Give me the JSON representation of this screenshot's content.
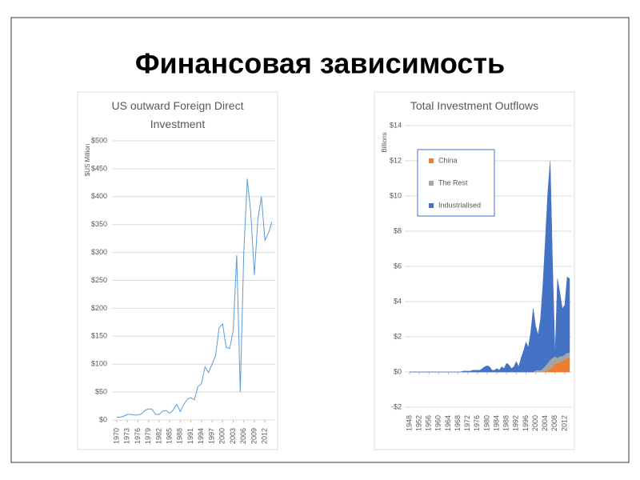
{
  "title": "Финансовая зависимость",
  "chart_data": [
    {
      "type": "line",
      "title": "US outward Foreign Direct Investment",
      "y_label": "$US Million",
      "x": [
        1970,
        1971,
        1972,
        1973,
        1974,
        1975,
        1976,
        1977,
        1978,
        1979,
        1980,
        1981,
        1982,
        1983,
        1984,
        1985,
        1986,
        1987,
        1988,
        1989,
        1990,
        1991,
        1992,
        1993,
        1994,
        1995,
        1996,
        1997,
        1998,
        1999,
        2000,
        2001,
        2002,
        2003,
        2004,
        2005,
        2006,
        2007,
        2008,
        2009,
        2010,
        2011,
        2012,
        2013,
        2014
      ],
      "series": [
        {
          "name": "US outward FDI",
          "color": "#5b9bd5",
          "values": [
            5,
            5,
            7,
            10,
            10,
            9,
            9,
            11,
            17,
            20,
            19,
            10,
            10,
            16,
            17,
            12,
            18,
            28,
            15,
            28,
            37,
            40,
            36,
            60,
            65,
            95,
            85,
            100,
            115,
            165,
            172,
            130,
            128,
            160,
            295,
            50,
            300,
            432,
            370,
            260,
            360,
            400,
            322,
            335,
            355
          ]
        }
      ],
      "xlim": [
        1970,
        2014
      ],
      "xticks": [
        1970,
        1973,
        1976,
        1979,
        1982,
        1985,
        1988,
        1991,
        1994,
        1997,
        2000,
        2003,
        2006,
        2009,
        2012
      ],
      "ylim": [
        0,
        500
      ],
      "yticks": [
        {
          "value": 0,
          "label": "$0"
        },
        {
          "value": 50,
          "label": "$50"
        },
        {
          "value": 100,
          "label": "$100"
        },
        {
          "value": 150,
          "label": "$150"
        },
        {
          "value": 200,
          "label": "$200"
        },
        {
          "value": 250,
          "label": "$250"
        },
        {
          "value": 300,
          "label": "$300"
        },
        {
          "value": 350,
          "label": "$350"
        },
        {
          "value": 400,
          "label": "$400"
        },
        {
          "value": 450,
          "label": "$450"
        },
        {
          "value": 500,
          "label": "$500"
        }
      ],
      "grid": true
    },
    {
      "type": "area",
      "title": "Total Investment Outflows",
      "y_label": "Billions",
      "x": [
        1948,
        1949,
        1950,
        1951,
        1952,
        1953,
        1954,
        1955,
        1956,
        1957,
        1958,
        1959,
        1960,
        1961,
        1962,
        1963,
        1964,
        1965,
        1966,
        1967,
        1968,
        1969,
        1970,
        1971,
        1972,
        1973,
        1974,
        1975,
        1976,
        1977,
        1978,
        1979,
        1980,
        1981,
        1982,
        1983,
        1984,
        1985,
        1986,
        1987,
        1988,
        1989,
        1990,
        1991,
        1992,
        1993,
        1994,
        1995,
        1996,
        1997,
        1998,
        1999,
        2000,
        2001,
        2002,
        2003,
        2004,
        2005,
        2006,
        2007,
        2008,
        2009,
        2010,
        2011,
        2012,
        2013,
        2014
      ],
      "series": [
        {
          "name": "China",
          "color": "#ed7d31",
          "values": [
            0,
            0,
            0,
            0,
            0,
            0,
            0,
            0,
            0,
            0,
            0,
            0,
            0,
            0,
            0,
            0,
            0,
            0,
            0,
            0,
            0,
            0,
            0,
            0,
            0,
            0,
            0,
            0,
            0,
            0,
            0,
            0,
            0,
            0,
            0,
            0,
            0,
            0,
            0,
            0,
            0,
            0,
            0,
            0,
            0,
            0,
            0,
            0,
            0,
            0,
            0,
            0,
            0,
            0,
            0,
            0,
            0.05,
            0.1,
            0.2,
            0.3,
            0.5,
            0.5,
            0.6,
            0.6,
            0.7,
            0.8,
            0.8
          ]
        },
        {
          "name": "The Rest",
          "color": "#a5a5a5",
          "values": [
            0,
            0,
            0,
            0,
            0,
            0,
            0,
            0,
            0,
            0,
            0,
            0,
            0,
            0,
            0,
            0,
            0,
            0,
            0,
            0,
            0,
            0,
            0,
            0,
            0,
            0,
            0,
            0,
            0,
            0,
            0,
            0,
            0,
            0,
            0,
            0,
            0,
            0,
            0,
            0,
            0,
            0,
            0,
            0,
            0,
            0,
            0,
            0,
            0,
            0,
            0,
            0,
            0.1,
            0.1,
            0.1,
            0.2,
            0.3,
            0.4,
            0.5,
            0.5,
            0.4,
            0.3,
            0.3,
            0.3,
            0.3,
            0.3,
            0.3
          ]
        },
        {
          "name": "Industrialised",
          "color": "#4472c4",
          "values": [
            0,
            0,
            0,
            0,
            0,
            0,
            0,
            0,
            0,
            0,
            0,
            0,
            0,
            0,
            0,
            0,
            0,
            0,
            0,
            0,
            0,
            0,
            0.05,
            0.05,
            0.05,
            0.05,
            0.1,
            0.1,
            0.1,
            0.1,
            0.2,
            0.3,
            0.35,
            0.3,
            0.1,
            0.1,
            0.2,
            0.1,
            0.3,
            0.2,
            0.5,
            0.4,
            0.2,
            0.3,
            0.6,
            0.3,
            0.8,
            1.2,
            1.7,
            1.4,
            2.3,
            3.6,
            2.5,
            2.0,
            2.9,
            4.8,
            7.2,
            9.7,
            11.3,
            5.2,
            0.1,
            4.5,
            3.6,
            2.7,
            2.8,
            4.3,
            4.2
          ]
        }
      ],
      "xlim": [
        1948,
        2014
      ],
      "xticks": [
        1948,
        1952,
        1956,
        1960,
        1964,
        1968,
        1972,
        1976,
        1980,
        1984,
        1988,
        1992,
        1996,
        2000,
        2004,
        2008,
        2012
      ],
      "ylim": [
        -2,
        14
      ],
      "yticks": [
        {
          "value": -2,
          "label": "-$2"
        },
        {
          "value": 0,
          "label": "$0"
        },
        {
          "value": 2,
          "label": "$2"
        },
        {
          "value": 4,
          "label": "$4"
        },
        {
          "value": 6,
          "label": "$6"
        },
        {
          "value": 8,
          "label": "$8"
        },
        {
          "value": 10,
          "label": "$10"
        },
        {
          "value": 12,
          "label": "$12"
        },
        {
          "value": 14,
          "label": "$14"
        }
      ],
      "grid": true,
      "legend": "top-left"
    }
  ]
}
